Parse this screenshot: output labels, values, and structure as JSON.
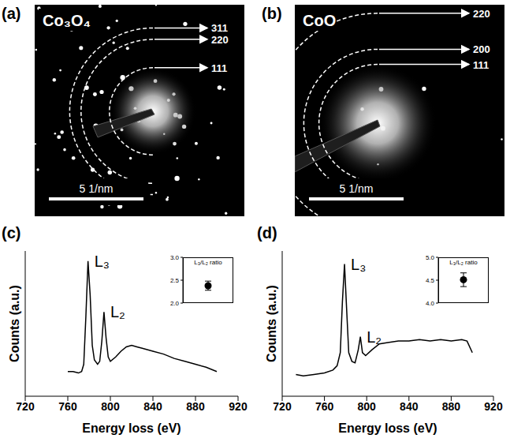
{
  "diffraction_panels": [
    {
      "panel": "(a)",
      "title": "Co₃O₄",
      "rings": [
        {
          "label": "311",
          "radius": 4.4
        },
        {
          "label": "220",
          "radius": 3.8
        },
        {
          "label": "111",
          "radius": 2.3
        }
      ],
      "scale_bar": {
        "label": "5 1/nm",
        "length": 5
      }
    },
    {
      "panel": "(b)",
      "title": "CoO",
      "rings": [
        {
          "label": "220",
          "radius": 5.8
        },
        {
          "label": "200",
          "radius": 3.9
        },
        {
          "label": "111",
          "radius": 3.1
        }
      ],
      "scale_bar": {
        "label": "5 1/nm",
        "length": 5
      }
    }
  ],
  "chart_data": [
    {
      "panel": "(c)",
      "type": "line",
      "x_label": "Energy loss (eV)",
      "y_label": "Counts (a.u.)",
      "x": [
        760,
        765,
        770,
        773,
        775,
        777,
        779,
        781,
        783,
        785,
        788,
        790,
        792,
        794,
        796,
        798,
        800,
        805,
        810,
        815,
        820,
        825,
        830,
        840,
        850,
        860,
        870,
        880,
        890,
        900
      ],
      "values": [
        17,
        17,
        16,
        17,
        22,
        55,
        93,
        70,
        35,
        25,
        22,
        24,
        38,
        58,
        40,
        27,
        24,
        27,
        31,
        34,
        35,
        34,
        33,
        31,
        29,
        26,
        24,
        22,
        20,
        17
      ],
      "color": "#000000",
      "xlim": [
        720,
        920
      ],
      "xticks": [
        720,
        760,
        800,
        840,
        880,
        920
      ],
      "ylim": [
        0,
        100
      ],
      "tick_labels": "x",
      "annotations": [
        {
          "text": "L₃",
          "x": 779
        },
        {
          "text": "L₂",
          "x": 794
        }
      ],
      "inset": {
        "type": "scatter",
        "title": "L₃/L₂ ratio",
        "categories": [
          null
        ],
        "values": [
          2.38
        ],
        "errors": [
          0.1
        ],
        "ylim": [
          2,
          3
        ],
        "yticks": [
          {
            "value": 2,
            "label": "2.0"
          },
          2.5,
          {
            "value": 3,
            "label": "3.0"
          }
        ],
        "tick_labels": "y",
        "color": "#000000",
        "marker": "circle"
      }
    },
    {
      "panel": "(d)",
      "type": "line",
      "x_label": "Energy loss (eV)",
      "y_label": "Counts (a.u.)",
      "x": [
        733,
        740,
        750,
        760,
        768,
        772,
        775,
        777,
        779,
        781,
        783,
        786,
        789,
        792,
        794,
        796,
        799,
        805,
        812,
        820,
        830,
        840,
        850,
        860,
        870,
        880,
        890,
        895,
        900
      ],
      "values": [
        15,
        14,
        15,
        16,
        18,
        21,
        30,
        65,
        91,
        60,
        30,
        24,
        23,
        32,
        41,
        30,
        28,
        32,
        36,
        37,
        38,
        38,
        39,
        38,
        39,
        38,
        39,
        38,
        30
      ],
      "color": "#000000",
      "xlim": [
        720,
        920
      ],
      "xticks": [
        720,
        760,
        800,
        840,
        880,
        920
      ],
      "ylim": [
        0,
        100
      ],
      "tick_labels": "x",
      "annotations": [
        {
          "text": "L₃",
          "x": 779
        },
        {
          "text": "L₂",
          "x": 794
        }
      ],
      "inset": {
        "type": "scatter",
        "title": "L₃/L₂ ratio",
        "categories": [
          null
        ],
        "values": [
          4.51
        ],
        "errors": [
          0.15
        ],
        "ylim": [
          4,
          5
        ],
        "yticks": [
          {
            "value": 4,
            "label": "4.0"
          },
          4.5,
          {
            "value": 5,
            "label": "5.0"
          }
        ],
        "tick_labels": "y",
        "color": "#000000",
        "marker": "circle"
      }
    }
  ]
}
